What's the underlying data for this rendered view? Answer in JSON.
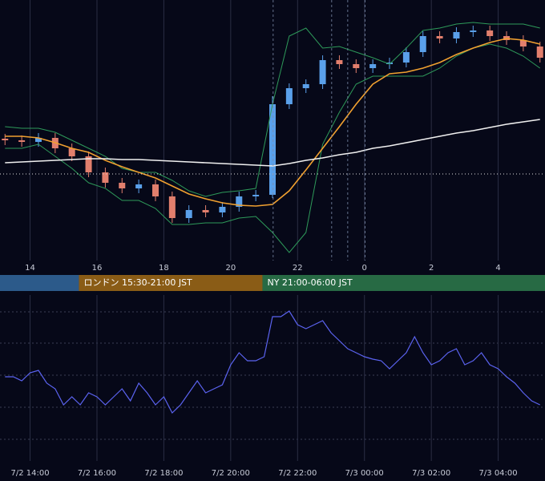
{
  "chart_data": [
    {
      "type": "candlestick",
      "x": [
        13.25,
        13.75,
        14.25,
        14.75,
        15.25,
        15.75,
        16.25,
        16.75,
        17.25,
        17.75,
        18.25,
        18.75,
        19.25,
        19.75,
        20.25,
        20.75,
        21.25,
        21.75,
        22.25,
        22.75,
        23.25,
        23.75,
        24.25,
        24.75,
        25.25,
        25.75,
        26.25,
        26.75,
        27.25,
        27.75,
        28.25,
        28.75,
        29.25
      ],
      "open": [
        152,
        150,
        148,
        153,
        140,
        130,
        110,
        97,
        90,
        95,
        80,
        53,
        63,
        60,
        67,
        80,
        82,
        195,
        215,
        220,
        250,
        245,
        240,
        245,
        247,
        260,
        280,
        277,
        285,
        287,
        280,
        275,
        267
      ],
      "high": [
        158,
        156,
        159,
        159,
        146,
        136,
        116,
        103,
        101,
        101,
        86,
        69,
        69,
        73,
        86,
        88,
        205,
        221,
        226,
        256,
        256,
        251,
        251,
        253,
        266,
        286,
        286,
        291,
        293,
        293,
        286,
        281,
        273
      ],
      "low": [
        144,
        142,
        142,
        134,
        124,
        104,
        91,
        84,
        84,
        74,
        47,
        47,
        54,
        54,
        61,
        74,
        78,
        189,
        209,
        214,
        239,
        234,
        234,
        239,
        241,
        254,
        271,
        271,
        279,
        274,
        269,
        261,
        247
      ],
      "close": [
        150,
        148,
        153,
        140,
        130,
        110,
        97,
        90,
        95,
        80,
        53,
        63,
        60,
        67,
        80,
        82,
        195,
        215,
        220,
        250,
        245,
        240,
        245,
        247,
        260,
        280,
        277,
        285,
        287,
        280,
        275,
        267,
        253
      ],
      "up_color": "#5aa0ea",
      "down_color": "#e27f6d",
      "overlays": [
        {
          "color": "#2e9a5a",
          "values": [
            167,
            165,
            165,
            160,
            150,
            140,
            130,
            115,
            110,
            110,
            100,
            87,
            80,
            85,
            87,
            90,
            195,
            280,
            290,
            265,
            267,
            260,
            253,
            245,
            265,
            287,
            290,
            295,
            297,
            295,
            295,
            295,
            290
          ]
        },
        {
          "color": "#2e9a5a",
          "values": [
            140,
            140,
            145,
            130,
            115,
            97,
            90,
            75,
            75,
            65,
            45,
            45,
            47,
            47,
            53,
            55,
            35,
            10,
            35,
            145,
            185,
            220,
            230,
            230,
            230,
            230,
            240,
            255,
            265,
            270,
            265,
            255,
            240
          ]
        },
        {
          "color": "#f0a030",
          "values": [
            155,
            155,
            153,
            147,
            140,
            135,
            125,
            117,
            110,
            103,
            93,
            83,
            77,
            72,
            69,
            68,
            70,
            87,
            113,
            140,
            167,
            195,
            220,
            233,
            235,
            240,
            247,
            257,
            265,
            272,
            277,
            275,
            270
          ]
        },
        {
          "color": "#f0f0f0",
          "values": [
            122,
            123,
            124,
            125,
            126,
            127,
            127,
            126,
            126,
            125,
            124,
            123,
            122,
            121,
            120,
            119,
            118,
            121,
            125,
            128,
            132,
            135,
            140,
            143,
            147,
            151,
            155,
            159,
            162,
            166,
            170,
            173,
            176
          ]
        }
      ],
      "price_line": 108,
      "event_lines": [
        21.27,
        23.02,
        23.5,
        24.02
      ],
      "xlim": [
        13.1,
        29.4
      ],
      "ylim": [
        0,
        325
      ],
      "xticks": [
        14,
        16,
        18,
        20,
        22,
        {
          "value": 24,
          "label": "0"
        },
        {
          "value": 26,
          "label": "2"
        },
        {
          "value": 28,
          "label": "4"
        }
      ],
      "grid": true,
      "sessions": [
        {
          "start": 13.1,
          "end": 15.46,
          "color": "#2c5a8a"
        },
        {
          "start": 15.46,
          "end": 20.95,
          "color": "#8a5c16",
          "label": "ロンドン 15:30-21:00 JST"
        },
        {
          "start": 20.95,
          "end": 29.4,
          "color": "#276a44",
          "label": "NY 21:00-06:00 JST"
        }
      ]
    },
    {
      "type": "line",
      "x": [
        13.25,
        13.5,
        13.75,
        14,
        14.25,
        14.5,
        14.75,
        15,
        15.25,
        15.5,
        15.75,
        16,
        16.25,
        16.5,
        16.75,
        17,
        17.25,
        17.5,
        17.75,
        18,
        18.25,
        18.5,
        18.75,
        19,
        19.25,
        19.5,
        19.75,
        20,
        20.25,
        20.5,
        20.75,
        21,
        21.25,
        21.5,
        21.75,
        22,
        22.25,
        22.5,
        22.75,
        23,
        23.25,
        23.5,
        23.75,
        24,
        24.25,
        24.5,
        24.75,
        25,
        25.25,
        25.5,
        25.75,
        26,
        26.25,
        26.5,
        26.75,
        27,
        27.25,
        27.5,
        27.75,
        28,
        28.25,
        28.5,
        28.75,
        29,
        29.25
      ],
      "values": [
        105,
        105,
        100,
        110,
        113,
        97,
        90,
        70,
        80,
        70,
        85,
        80,
        70,
        80,
        90,
        75,
        97,
        85,
        70,
        80,
        60,
        70,
        85,
        100,
        85,
        90,
        95,
        120,
        135,
        125,
        125,
        130,
        180,
        180,
        187,
        170,
        165,
        170,
        175,
        160,
        150,
        140,
        135,
        130,
        127,
        125,
        115,
        125,
        135,
        155,
        135,
        120,
        125,
        135,
        140,
        120,
        125,
        135,
        120,
        115,
        105,
        97,
        85,
        75,
        70
      ],
      "color": "#5b63f0",
      "xlim": [
        13.1,
        29.4
      ],
      "ylim": [
        0,
        207
      ],
      "xticks": [
        {
          "value": 14,
          "label": "7/2 14:00"
        },
        {
          "value": 16,
          "label": "7/2 16:00"
        },
        {
          "value": 18,
          "label": "7/2 18:00"
        },
        {
          "value": 20,
          "label": "7/2 20:00"
        },
        {
          "value": 22,
          "label": "7/2 22:00"
        },
        {
          "value": 24,
          "label": "7/3 00:00"
        },
        {
          "value": 26,
          "label": "7/3 02:00"
        },
        {
          "value": 28,
          "label": "7/3 04:00"
        }
      ],
      "yticks": [
        27,
        67,
        107,
        147,
        186
      ],
      "grid": true
    }
  ]
}
